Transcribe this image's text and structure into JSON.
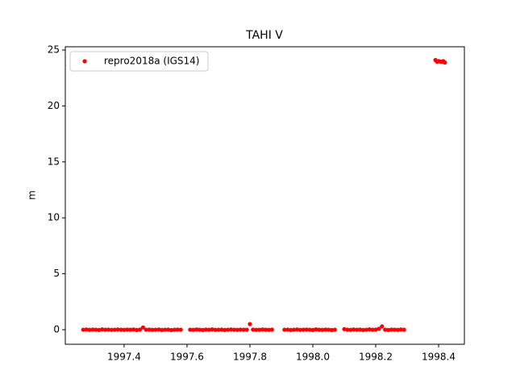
{
  "chart_data": {
    "type": "scatter",
    "title": "TAHI V",
    "y_label": "m",
    "x": [
      1997.27,
      1997.28,
      1997.29,
      1997.3,
      1997.31,
      1997.32,
      1997.33,
      1997.34,
      1997.35,
      1997.36,
      1997.37,
      1997.38,
      1997.39,
      1997.4,
      1997.41,
      1997.42,
      1997.43,
      1997.44,
      1997.45,
      1997.46,
      1997.47,
      1997.48,
      1997.49,
      1997.5,
      1997.51,
      1997.52,
      1997.53,
      1997.54,
      1997.55,
      1997.56,
      1997.57,
      1997.58,
      1997.61,
      1997.62,
      1997.63,
      1997.64,
      1997.65,
      1997.66,
      1997.67,
      1997.68,
      1997.69,
      1997.7,
      1997.71,
      1997.72,
      1997.73,
      1997.74,
      1997.75,
      1997.76,
      1997.77,
      1997.78,
      1997.79,
      1997.8,
      1997.81,
      1997.82,
      1997.83,
      1997.84,
      1997.85,
      1997.86,
      1997.87,
      1997.91,
      1997.92,
      1997.93,
      1997.94,
      1997.95,
      1997.96,
      1997.97,
      1997.98,
      1997.99,
      1998.0,
      1998.01,
      1998.02,
      1998.03,
      1998.04,
      1998.05,
      1998.06,
      1998.07,
      1998.1,
      1998.11,
      1998.12,
      1998.13,
      1998.14,
      1998.15,
      1998.16,
      1998.17,
      1998.18,
      1998.19,
      1998.2,
      1998.21,
      1998.22,
      1998.23,
      1998.24,
      1998.25,
      1998.26,
      1998.27,
      1998.28,
      1998.29,
      1998.39,
      1998.395,
      1998.4,
      1998.405,
      1998.41,
      1998.415,
      1998.42
    ],
    "series": [
      {
        "name": "repro2018a (IGS14)",
        "color": "#ff0000",
        "values": [
          0,
          0.02,
          -0.01,
          0.01,
          0,
          -0.02,
          0.03,
          0,
          0.01,
          -0.01,
          0,
          0.02,
          0,
          -0.01,
          0.01,
          0,
          0.02,
          -0.02,
          0.01,
          0.2,
          0,
          0.01,
          -0.01,
          0,
          0.02,
          -0.02,
          0,
          0.01,
          -0.03,
          0,
          0.01,
          0,
          0,
          -0.01,
          0.02,
          0,
          -0.02,
          0.01,
          0,
          0.03,
          -0.01,
          0,
          0.01,
          -0.02,
          0,
          0.02,
          0,
          -0.01,
          0.01,
          0,
          0,
          0.5,
          0.01,
          -0.01,
          0,
          0.02,
          0,
          -0.01,
          0.01,
          0,
          0.01,
          -0.02,
          0,
          0.02,
          -0.01,
          0,
          0.01,
          0,
          -0.02,
          0.03,
          0,
          -0.01,
          0.01,
          0,
          -0.03,
          0,
          0.05,
          0,
          -0.01,
          0.02,
          0,
          0.01,
          -0.02,
          0,
          0.03,
          0,
          0.01,
          0.08,
          0.3,
          0,
          -0.02,
          0.01,
          0,
          -0.01,
          0.02,
          0,
          24.1,
          23.95,
          24.0,
          23.97,
          23.95,
          24.0,
          23.88
        ]
      }
    ],
    "xlim": [
      1997.213,
      1998.482
    ],
    "ylim": [
      -1.3,
      25.29
    ],
    "xticks": [
      1997.4,
      1997.6,
      1997.8,
      {
        "value": 1998,
        "label": "1998.0"
      },
      1998.2,
      1998.4
    ],
    "yticks": [
      0,
      5,
      10,
      15,
      20,
      25
    ],
    "grid": false,
    "legend": "upper left"
  }
}
